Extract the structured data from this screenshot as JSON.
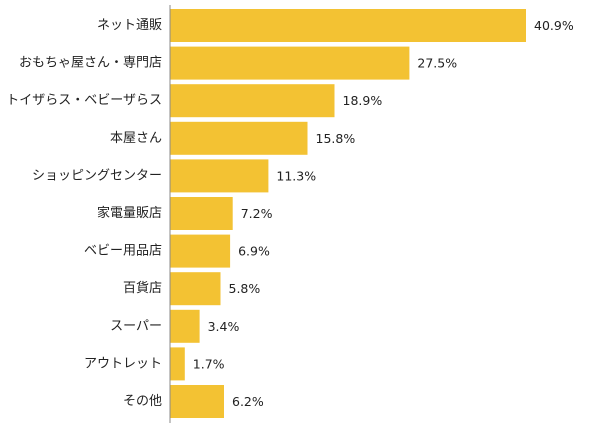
{
  "chart_data": {
    "type": "bar",
    "orientation": "horizontal",
    "categories": [
      "ネット通販",
      "おもちゃ屋さん・専門店",
      "トイザらス・ベビーザらス",
      "本屋さん",
      "ショッピングセンター",
      "家電量販店",
      "ベビー用品店",
      "百貨店",
      "スーパー",
      "アウトレット",
      "その他"
    ],
    "values": [
      40.9,
      27.5,
      18.9,
      15.8,
      11.3,
      7.2,
      6.9,
      5.8,
      3.4,
      1.7,
      6.2
    ],
    "value_labels": [
      "40.9%",
      "27.5%",
      "18.9%",
      "15.8%",
      "11.3%",
      "7.2%",
      "6.9%",
      "5.8%",
      "3.4%",
      "1.7%",
      "6.2%"
    ],
    "unit": "%",
    "xlim": [
      0,
      40.9
    ],
    "grid": false,
    "legend": "none",
    "title": "",
    "xlabel": "",
    "ylabel": "",
    "colors": {
      "bar": "#F3C233",
      "axis": "#888888",
      "text": "#222222"
    }
  }
}
